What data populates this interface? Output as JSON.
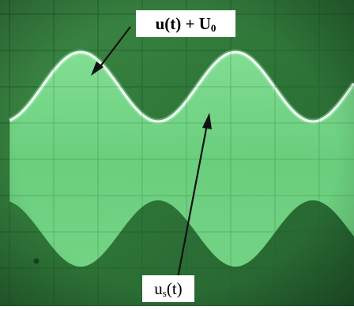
{
  "annotations": {
    "top_label": {
      "text": "u(t) + U",
      "subscript": "0"
    },
    "bottom_label": {
      "prefix": "u",
      "subscript": "s",
      "suffix": "(t)"
    }
  },
  "colors": {
    "screen_background": "#2f7a3a",
    "screen_shadow": "#1c4f25",
    "grid_line": "#1f5a2a",
    "envelope_fill": "#7fe08f",
    "trace_bright": "#eafff0",
    "arrow": "#111111",
    "label_background": "#ffffff",
    "label_text": "#000000"
  },
  "scene": {
    "description_free": true,
    "shapes": [
      "oscilloscope-screen",
      "grid",
      "upper-envelope-trace",
      "modulated-band",
      "arrow-top",
      "arrow-bottom"
    ]
  }
}
